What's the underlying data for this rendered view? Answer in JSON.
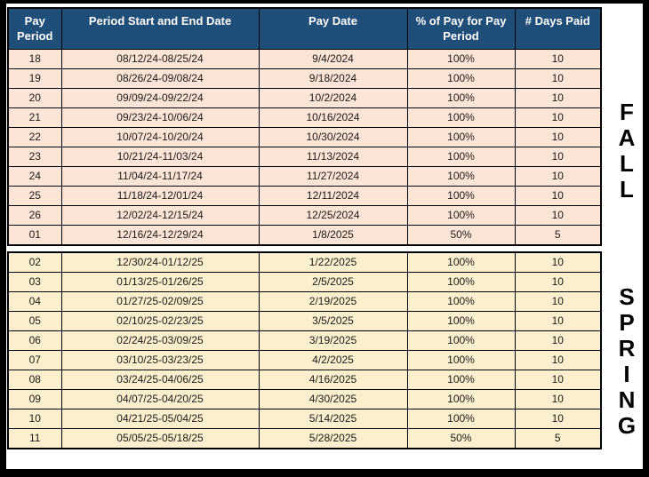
{
  "table": {
    "headers": [
      "Pay Period",
      "Period Start and End Date",
      "Pay Date",
      "% of Pay for Pay Period",
      "# Days Paid"
    ],
    "header_names": [
      "pay-period",
      "period-start-end-date",
      "pay-date",
      "pct-of-pay-for-period",
      "days-paid"
    ],
    "fall_rows": [
      [
        "18",
        "08/12/24-08/25/24",
        "9/4/2024",
        "100%",
        "10"
      ],
      [
        "19",
        "08/26/24-09/08/24",
        "9/18/2024",
        "100%",
        "10"
      ],
      [
        "20",
        "09/09/24-09/22/24",
        "10/2/2024",
        "100%",
        "10"
      ],
      [
        "21",
        "09/23/24-10/06/24",
        "10/16/2024",
        "100%",
        "10"
      ],
      [
        "22",
        "10/07/24-10/20/24",
        "10/30/2024",
        "100%",
        "10"
      ],
      [
        "23",
        "10/21/24-11/03/24",
        "11/13/2024",
        "100%",
        "10"
      ],
      [
        "24",
        "11/04/24-11/17/24",
        "11/27/2024",
        "100%",
        "10"
      ],
      [
        "25",
        "11/18/24-12/01/24",
        "12/11/2024",
        "100%",
        "10"
      ],
      [
        "26",
        "12/02/24-12/15/24",
        "12/25/2024",
        "100%",
        "10"
      ],
      [
        "01",
        "12/16/24-12/29/24",
        "1/8/2025",
        "50%",
        "5"
      ]
    ],
    "spring_rows": [
      [
        "02",
        "12/30/24-01/12/25",
        "1/22/2025",
        "100%",
        "10"
      ],
      [
        "03",
        "01/13/25-01/26/25",
        "2/5/2025",
        "100%",
        "10"
      ],
      [
        "04",
        "01/27/25-02/09/25",
        "2/19/2025",
        "100%",
        "10"
      ],
      [
        "05",
        "02/10/25-02/23/25",
        "3/5/2025",
        "100%",
        "10"
      ],
      [
        "06",
        "02/24/25-03/09/25",
        "3/19/2025",
        "100%",
        "10"
      ],
      [
        "07",
        "03/10/25-03/23/25",
        "4/2/2025",
        "100%",
        "10"
      ],
      [
        "08",
        "03/24/25-04/06/25",
        "4/16/2025",
        "100%",
        "10"
      ],
      [
        "09",
        "04/07/25-04/20/25",
        "4/30/2025",
        "100%",
        "10"
      ],
      [
        "10",
        "04/21/25-05/04/25",
        "5/14/2025",
        "100%",
        "10"
      ],
      [
        "11",
        "05/05/25-05/18/25",
        "5/28/2025",
        "50%",
        "5"
      ]
    ]
  },
  "season_labels": {
    "fall": "FALL",
    "spring": "SPRING"
  },
  "colors": {
    "header_bg": "#1F4E79",
    "fall_row_bg": "#FCE4D6",
    "spring_row_bg": "#FBEFCD",
    "border": "#000000",
    "header_text": "#FFFFFF",
    "cell_text": "#1A1A1A"
  }
}
